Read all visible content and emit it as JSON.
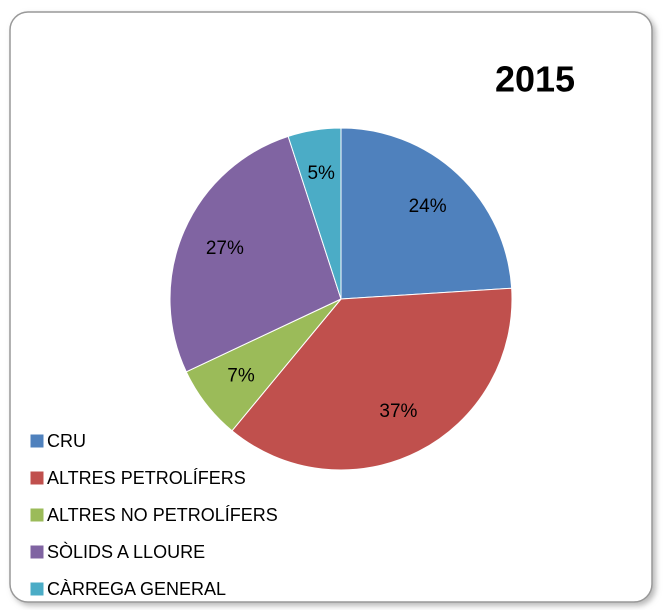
{
  "chart_data": {
    "type": "pie",
    "title": "2015",
    "categories": [
      "CRU",
      "ALTRES PETROLÍFERS",
      "ALTRES NO PETROLÍFERS",
      "SÒLIDS A LLOURE",
      "CÀRREGA GENERAL"
    ],
    "values": [
      24,
      37,
      7,
      27,
      5
    ],
    "value_labels": [
      "24%",
      "37%",
      "7%",
      "27%",
      "5%"
    ],
    "colors": [
      "#4f81bd",
      "#c0504d",
      "#9bbb59",
      "#8064a2",
      "#4bacc6"
    ],
    "legend": "bottom-left"
  }
}
